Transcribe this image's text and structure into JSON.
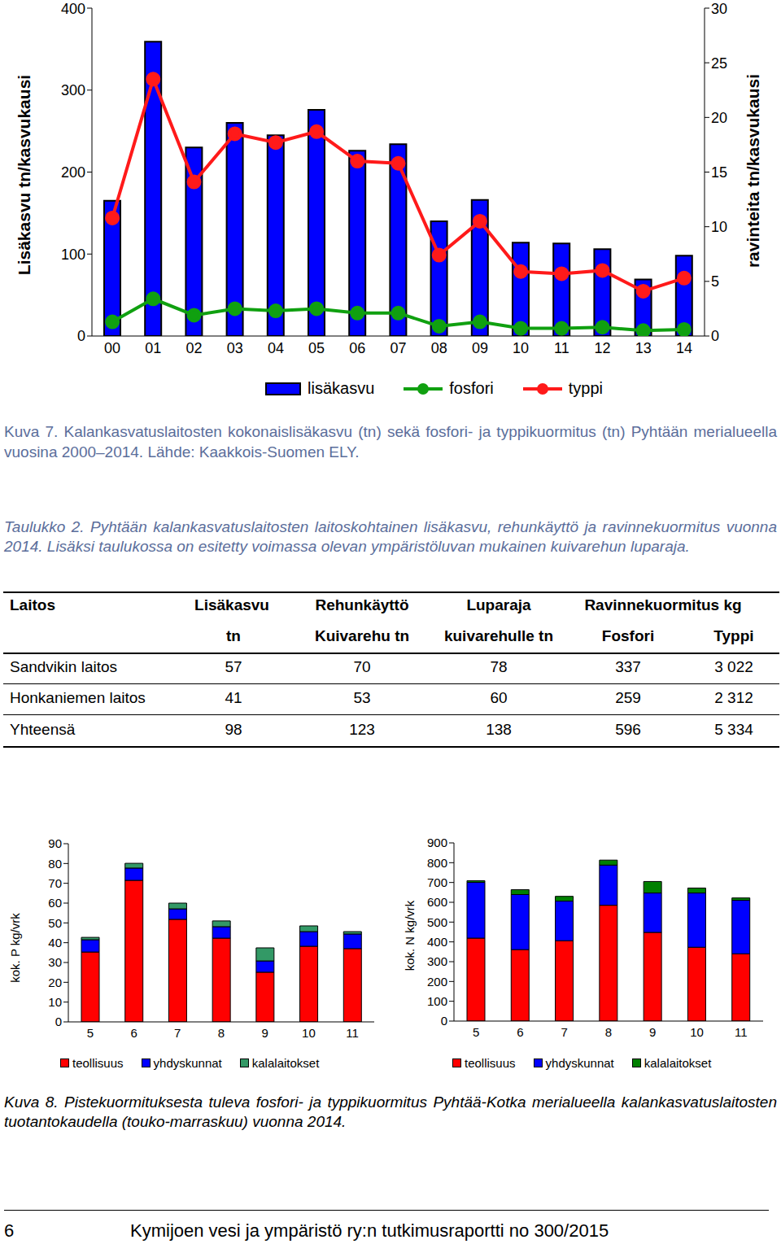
{
  "chart_data": [
    {
      "type": "bar",
      "categories": [
        "00",
        "01",
        "02",
        "03",
        "04",
        "05",
        "06",
        "07",
        "08",
        "09",
        "10",
        "11",
        "12",
        "13",
        "14"
      ],
      "series": [
        {
          "name": "lisäkasvu",
          "type": "bar",
          "color": "#0000ff",
          "values": [
            165,
            359,
            230,
            260,
            245,
            276,
            226,
            234,
            140,
            166,
            114,
            113,
            106,
            69,
            98
          ]
        },
        {
          "name": "fosfori",
          "type": "line",
          "color": "#10a010",
          "marker": "circle",
          "axis": "y2",
          "values": [
            1.3,
            3.4,
            1.9,
            2.5,
            2.3,
            2.5,
            2.1,
            2.1,
            0.9,
            1.3,
            0.7,
            0.7,
            0.8,
            0.5,
            0.6
          ]
        },
        {
          "name": "typpi",
          "type": "line",
          "color": "#ff1a1a",
          "marker": "circle",
          "axis": "y2",
          "values": [
            10.8,
            23.5,
            14.1,
            18.5,
            17.7,
            18.7,
            16.0,
            15.8,
            7.4,
            10.5,
            5.9,
            5.7,
            6.0,
            4.1,
            5.3
          ]
        }
      ],
      "y_label": "Lisäkasvu tn/kasvukausi",
      "y2_label": "ravinteita tn/kasvukausi",
      "ylim": [
        0,
        400
      ],
      "yticks": [
        0,
        100,
        200,
        300,
        400
      ],
      "y2lim": [
        0,
        30
      ],
      "y2ticks": [
        0,
        5,
        10,
        15,
        20,
        25,
        30
      ],
      "grid": false,
      "legend": "bottom"
    },
    {
      "type": "bar",
      "stacked": true,
      "categories": [
        "5",
        "6",
        "7",
        "8",
        "9",
        "10",
        "11"
      ],
      "series": [
        {
          "name": "teollisuus",
          "color": "#ff0000",
          "values": [
            35.3,
            71.5,
            51.8,
            42.3,
            25.1,
            38.2,
            37.0
          ]
        },
        {
          "name": "yhdyskunnat",
          "color": "#0000ff",
          "values": [
            6.2,
            6.2,
            5.3,
            5.8,
            5.7,
            7.4,
            7.4
          ]
        },
        {
          "name": "kalalaitokset",
          "color": "#339966",
          "values": [
            1.2,
            2.4,
            2.9,
            2.9,
            6.6,
            2.9,
            1.2
          ]
        }
      ],
      "y_label": "kok. P kg/vrk",
      "ylim": [
        0,
        90
      ],
      "yticks": [
        0,
        10,
        20,
        30,
        40,
        50,
        60,
        70,
        80,
        90
      ],
      "grid": false,
      "legend": "bottom"
    },
    {
      "type": "bar",
      "stacked": true,
      "categories": [
        "5",
        "6",
        "7",
        "8",
        "9",
        "10",
        "11"
      ],
      "series": [
        {
          "name": "teollisuus",
          "color": "#ff0000",
          "values": [
            419,
            361,
            406,
            585,
            448,
            373,
            340
          ]
        },
        {
          "name": "yhdyskunnat",
          "color": "#0000ff",
          "values": [
            282,
            278,
            200,
            203,
            199,
            274,
            270
          ]
        },
        {
          "name": "kalalaitokset",
          "color": "#008000",
          "values": [
            8,
            25,
            24,
            25,
            58,
            25,
            12
          ]
        }
      ],
      "y_label": "kok. N kg/vrk",
      "ylim": [
        0,
        900
      ],
      "yticks": [
        0,
        100,
        200,
        300,
        400,
        500,
        600,
        700,
        800,
        900
      ],
      "grid": false,
      "legend": "bottom"
    }
  ],
  "captions": {
    "kuva7": "Kuva 7. Kalankasvatuslaitosten kokonaislisäkasvu (tn) sekä fosfori- ja typpikuormitus (tn) Pyhtään merialueella vuosina 2000–2014. Lähde: Kaakkois-Suomen ELY.",
    "taulukko2": "Taulukko 2. Pyhtään kalankasvatuslaitosten laitoskohtainen lisäkasvu, rehunkäyttö ja ravinnekuormitus vuonna 2014. Lisäksi taulukossa on esitetty voimassa olevan ympäristöluvan mukainen kuivarehun luparaja.",
    "kuva8": "Kuva 8. Pistekuormituksesta tuleva fosfori- ja typpikuormitus Pyhtää-Kotka merialueella kalankasvatuslaitosten tuotantokaudella (touko-marraskuu) vuonna 2014."
  },
  "table": {
    "header": [
      "Laitos",
      "Lisäkasvu",
      "Rehunkäyttö",
      "Luparaja",
      "Ravinnekuormitus kg"
    ],
    "subheader": [
      "tn",
      "Kuivarehu tn",
      "kuivarehulle tn",
      "Fosfori",
      "Typpi"
    ],
    "rows": [
      [
        "Sandvikin laitos",
        "57",
        "70",
        "78",
        "337",
        "3 022"
      ],
      [
        "Honkaniemen laitos",
        "41",
        "53",
        "60",
        "259",
        "2 312"
      ],
      [
        "Yhteensä",
        "98",
        "123",
        "138",
        "596",
        "5 334"
      ]
    ]
  },
  "footer": {
    "page": 6,
    "text": "Kymijoen vesi ja ympäristö ry:n tutkimusraportti no 300/2015"
  }
}
